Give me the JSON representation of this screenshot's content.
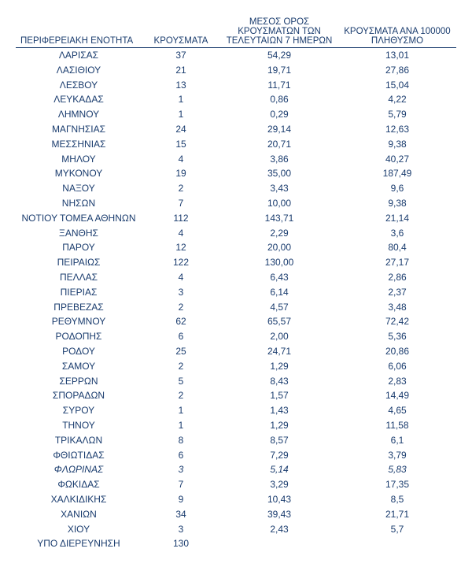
{
  "table": {
    "columns": [
      "ΠΕΡΙΦΕΡΕΙΑΚΗ ΕΝΟΤΗΤΑ",
      "ΚΡΟΥΣΜΑΤΑ",
      "ΜΕΣΟΣ ΟΡΟΣ ΚΡΟΥΣΜΑΤΩΝ ΤΩΝ ΤΕΛΕΥΤΑΙΩΝ 7 ΗΜΕΡΩΝ",
      "ΚΡΟΥΣΜΑΤΑ ΑΝΑ 100000 ΠΛΗΘΥΣΜΟ"
    ],
    "col_widths": [
      "160px",
      "100px",
      "150px",
      "150px"
    ],
    "header_color": "#1a3c6e",
    "row_color": "#1a3c6e",
    "background_color": "#ffffff",
    "font_family": "Arial, sans-serif",
    "header_fontsize": 11.5,
    "body_fontsize": 12,
    "italic_rows": [
      29
    ],
    "rows": [
      [
        "ΛΑΡΙΣΑΣ",
        "37",
        "54,29",
        "13,01"
      ],
      [
        "ΛΑΣΙΘΙΟΥ",
        "21",
        "19,71",
        "27,86"
      ],
      [
        "ΛΕΣΒΟΥ",
        "13",
        "11,71",
        "15,04"
      ],
      [
        "ΛΕΥΚΑΔΑΣ",
        "1",
        "0,86",
        "4,22"
      ],
      [
        "ΛΗΜΝΟΥ",
        "1",
        "0,29",
        "5,79"
      ],
      [
        "ΜΑΓΝΗΣΙΑΣ",
        "24",
        "29,14",
        "12,63"
      ],
      [
        "ΜΕΣΣΗΝΙΑΣ",
        "15",
        "20,71",
        "9,38"
      ],
      [
        "ΜΗΛΟΥ",
        "4",
        "3,86",
        "40,27"
      ],
      [
        "ΜΥΚΟΝΟΥ",
        "19",
        "35,00",
        "187,49"
      ],
      [
        "ΝΑΞΟΥ",
        "2",
        "3,43",
        "9,6"
      ],
      [
        "ΝΗΣΩΝ",
        "7",
        "10,00",
        "9,38"
      ],
      [
        "ΝΟΤΙΟΥ ΤΟΜΕΑ ΑΘΗΝΩΝ",
        "112",
        "143,71",
        "21,14"
      ],
      [
        "ΞΑΝΘΗΣ",
        "4",
        "2,29",
        "3,6"
      ],
      [
        "ΠΑΡΟΥ",
        "12",
        "20,00",
        "80,4"
      ],
      [
        "ΠΕΙΡΑΙΩΣ",
        "122",
        "130,00",
        "27,17"
      ],
      [
        "ΠΕΛΛΑΣ",
        "4",
        "6,43",
        "2,86"
      ],
      [
        "ΠΙΕΡΙΑΣ",
        "3",
        "6,14",
        "2,37"
      ],
      [
        "ΠΡΕΒΕΖΑΣ",
        "2",
        "4,57",
        "3,48"
      ],
      [
        "ΡΕΘΥΜΝΟΥ",
        "62",
        "65,57",
        "72,42"
      ],
      [
        "ΡΟΔΟΠΗΣ",
        "6",
        "2,00",
        "5,36"
      ],
      [
        "ΡΟΔΟΥ",
        "25",
        "24,71",
        "20,86"
      ],
      [
        "ΣΑΜΟΥ",
        "2",
        "1,29",
        "6,06"
      ],
      [
        "ΣΕΡΡΩΝ",
        "5",
        "8,43",
        "2,83"
      ],
      [
        "ΣΠΟΡΑΔΩΝ",
        "2",
        "1,57",
        "14,49"
      ],
      [
        "ΣΥΡΟΥ",
        "1",
        "1,43",
        "4,65"
      ],
      [
        "ΤΗΝΟΥ",
        "1",
        "1,29",
        "11,58"
      ],
      [
        "ΤΡΙΚΑΛΩΝ",
        "8",
        "8,57",
        "6,1"
      ],
      [
        "ΦΘΙΩΤΙΔΑΣ",
        "6",
        "7,29",
        "3,79"
      ],
      [
        "ΦΛΩΡΙΝΑΣ",
        "3",
        "5,14",
        "5,83"
      ],
      [
        "ΦΩΚΙΔΑΣ",
        "7",
        "3,29",
        "17,35"
      ],
      [
        "ΧΑΛΚΙΔΙΚΗΣ",
        "9",
        "10,43",
        "8,5"
      ],
      [
        "ΧΑΝΙΩΝ",
        "34",
        "39,43",
        "21,71"
      ],
      [
        "ΧΙΟΥ",
        "3",
        "2,43",
        "5,7"
      ],
      [
        "ΥΠΟ ΔΙΕΡΕΥΝΗΣΗ",
        "130",
        "",
        ""
      ]
    ]
  }
}
